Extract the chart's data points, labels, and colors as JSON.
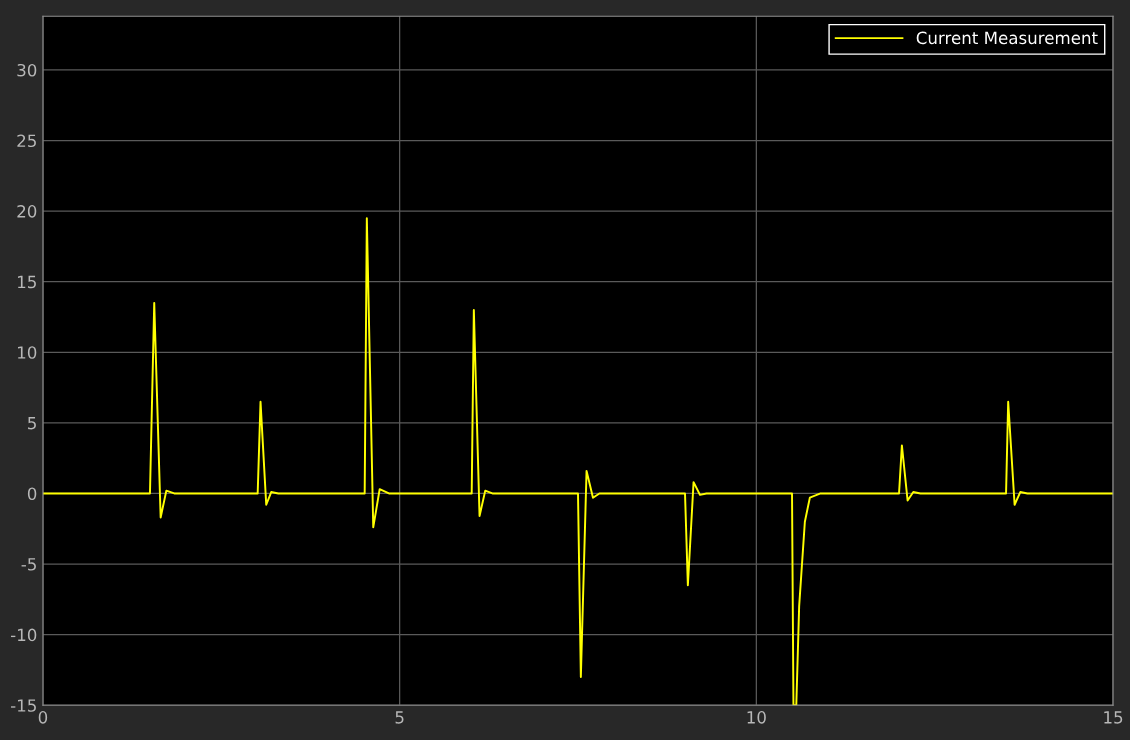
{
  "chart_data": {
    "type": "line",
    "xlim": [
      0,
      15
    ],
    "ylim": [
      -15,
      33.8
    ],
    "xticks": [
      0,
      5,
      10,
      15
    ],
    "yticks": [
      -15,
      -10,
      -5,
      0,
      5,
      10,
      15,
      20,
      25,
      30
    ],
    "grid": true,
    "legend": "top right",
    "marker": "none",
    "line_style": "solid",
    "series": [
      {
        "name": "Current Measurement",
        "color": "#ffff00",
        "x": [
          0,
          1.5,
          1.56,
          1.65,
          1.73,
          1.84,
          3.01,
          3.05,
          3.13,
          3.2,
          3.3,
          4.51,
          4.54,
          4.63,
          4.72,
          4.85,
          6.01,
          6.04,
          6.12,
          6.2,
          6.3,
          7.5,
          7.54,
          7.62,
          7.71,
          7.8,
          9.0,
          9.04,
          9.12,
          9.21,
          9.3,
          10.5,
          10.52,
          10.56,
          10.6,
          10.68,
          10.75,
          10.9,
          12.0,
          12.04,
          12.12,
          12.2,
          12.3,
          13.5,
          13.53,
          13.62,
          13.7,
          13.8,
          15
        ],
        "values": [
          0,
          0,
          13.5,
          -1.7,
          0.2,
          0,
          0,
          6.5,
          -0.8,
          0.1,
          0,
          0,
          19.5,
          -2.4,
          0.3,
          0,
          0,
          13.0,
          -1.6,
          0.2,
          0,
          0,
          -13,
          1.6,
          -0.3,
          0,
          0,
          -6.5,
          0.8,
          -0.1,
          0,
          0,
          -15,
          -15,
          -8,
          -2,
          -0.3,
          0,
          0,
          3.4,
          -0.5,
          0.1,
          0,
          0,
          6.5,
          -0.8,
          0.1,
          0,
          0
        ]
      }
    ]
  }
}
